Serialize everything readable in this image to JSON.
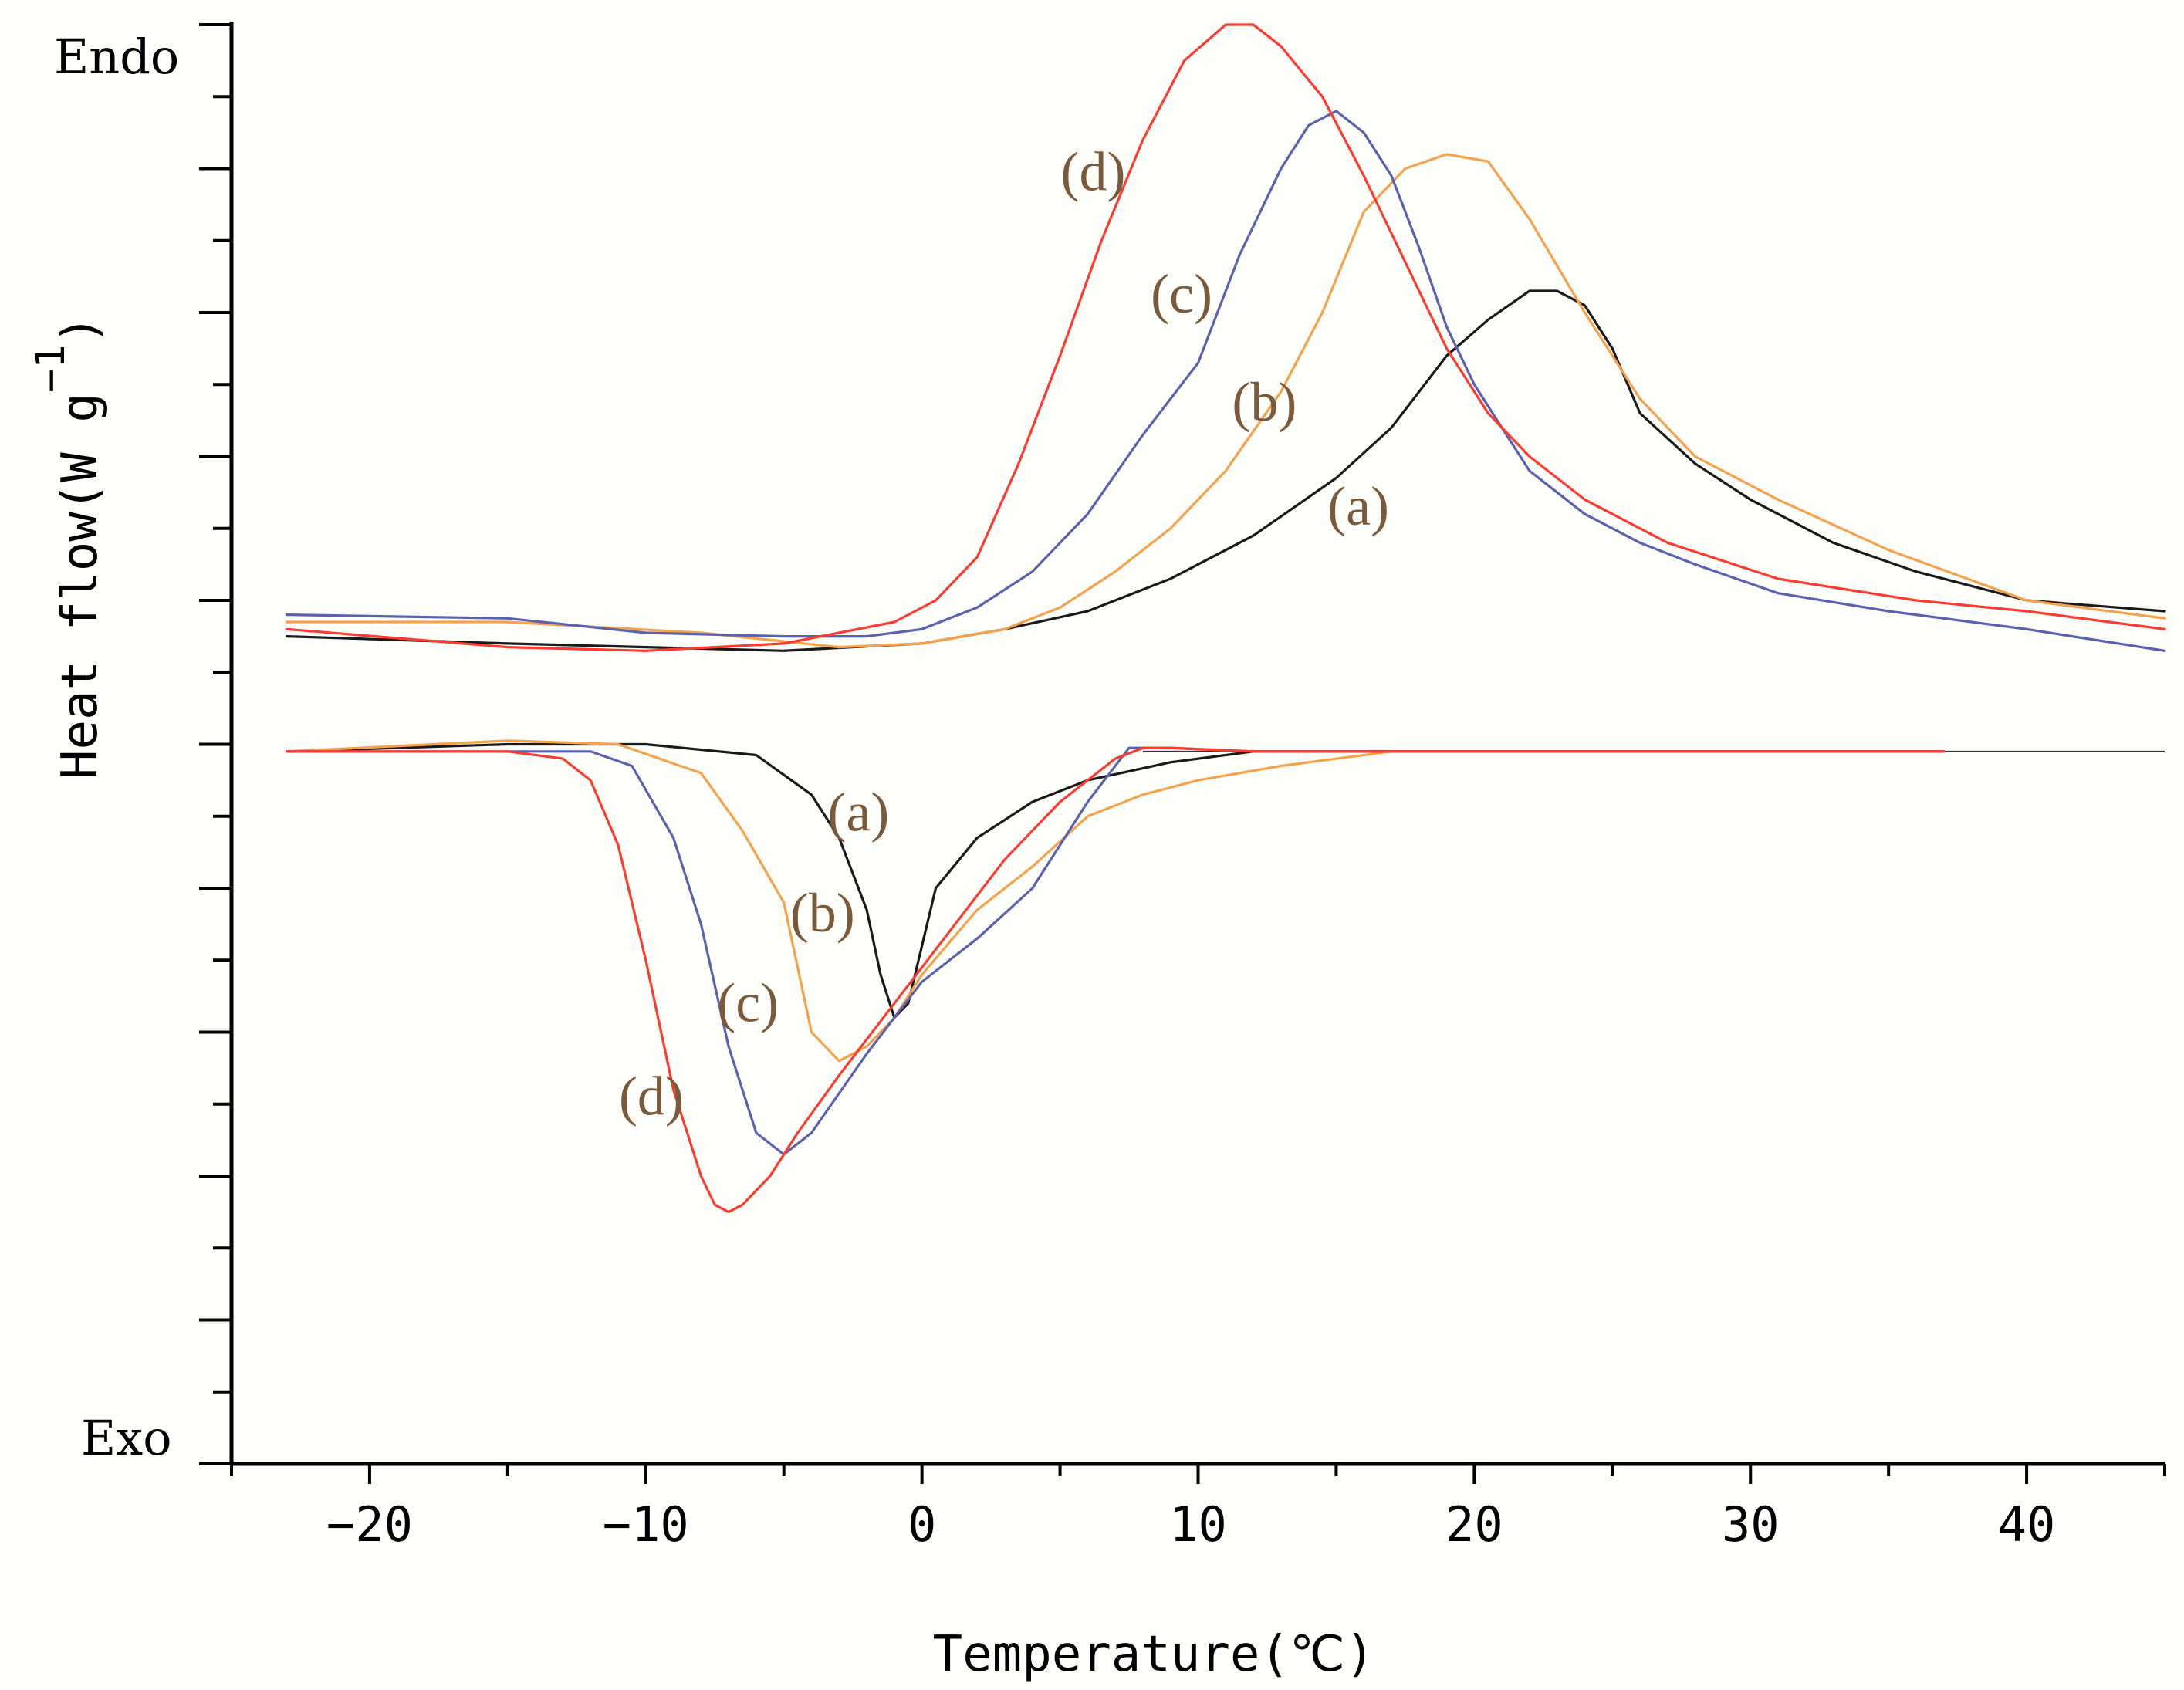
{
  "colors": {
    "a": "#1a1a1a",
    "b": "#f7a14a",
    "c": "#5961b0",
    "d": "#ff3b30",
    "label": "#7a5a3a",
    "axis": "#000000"
  },
  "chart_data": {
    "type": "line",
    "title": "",
    "xlabel": "Temperature(℃)",
    "ylabel": "Heat flow(W g",
    "ylabel_sup": "−1",
    "ylabel_close": ")",
    "y_top_label": "Endo",
    "y_bottom_label": "Exo",
    "xlim": [
      -25,
      45
    ],
    "ylim": [
      -10,
      10
    ],
    "xticks": [
      -20,
      -10,
      0,
      10,
      20,
      30,
      40
    ],
    "xtick_labels": [
      "−20",
      "−10",
      "0",
      "10",
      "20",
      "30",
      "40"
    ],
    "series": [
      {
        "name": "(a)",
        "key": "a",
        "group": "heating",
        "x": [
          -23,
          -15,
          -10,
          -5,
          0,
          3,
          6,
          9,
          12,
          15,
          17,
          19,
          20.5,
          22,
          23,
          24,
          25,
          26,
          28,
          30,
          33,
          36,
          40,
          45
        ],
        "y": [
          1.5,
          1.4,
          1.35,
          1.3,
          1.4,
          1.6,
          1.85,
          2.3,
          2.9,
          3.7,
          4.4,
          5.4,
          5.9,
          6.3,
          6.3,
          6.1,
          5.5,
          4.6,
          3.9,
          3.4,
          2.8,
          2.4,
          2.0,
          1.85
        ]
      },
      {
        "name": "(b)",
        "key": "b",
        "group": "heating",
        "x": [
          -23,
          -15,
          -8,
          -3,
          0,
          3,
          5,
          7,
          9,
          11,
          13,
          14.5,
          16,
          17.5,
          19,
          20.5,
          22,
          24,
          26,
          28,
          31,
          35,
          40,
          45
        ],
        "y": [
          1.7,
          1.7,
          1.55,
          1.35,
          1.4,
          1.6,
          1.9,
          2.4,
          3.0,
          3.8,
          4.9,
          6.0,
          7.4,
          8.0,
          8.2,
          8.1,
          7.3,
          6.0,
          4.8,
          4.0,
          3.4,
          2.7,
          2.0,
          1.75
        ]
      },
      {
        "name": "(c)",
        "key": "c",
        "group": "heating",
        "x": [
          -23,
          -15,
          -10,
          -5,
          -2,
          0,
          2,
          4,
          6,
          8,
          10,
          11.5,
          13,
          14,
          15,
          16,
          17,
          18,
          19,
          20,
          21,
          22,
          24,
          26,
          28,
          31,
          35,
          40,
          45
        ],
        "y": [
          1.8,
          1.75,
          1.55,
          1.5,
          1.5,
          1.6,
          1.9,
          2.4,
          3.2,
          4.3,
          5.3,
          6.8,
          8.0,
          8.6,
          8.8,
          8.5,
          7.9,
          6.9,
          5.8,
          5.0,
          4.4,
          3.8,
          3.2,
          2.8,
          2.5,
          2.1,
          1.85,
          1.6,
          1.3
        ]
      },
      {
        "name": "(d)",
        "key": "d",
        "group": "heating",
        "x": [
          -23,
          -15,
          -10,
          -5,
          -1,
          0.5,
          2,
          3.5,
          5,
          6.5,
          8,
          9.5,
          11,
          12,
          13,
          14.5,
          16,
          17.5,
          19,
          20.5,
          22,
          24,
          27,
          31,
          36,
          40,
          45
        ],
        "y": [
          1.6,
          1.35,
          1.3,
          1.4,
          1.7,
          2.0,
          2.6,
          3.9,
          5.4,
          7.0,
          8.4,
          9.5,
          10.0,
          10.0,
          9.7,
          9.0,
          7.9,
          6.7,
          5.5,
          4.6,
          4.0,
          3.4,
          2.8,
          2.3,
          2.0,
          1.85,
          1.6
        ]
      },
      {
        "name": "(a)",
        "key": "a",
        "group": "cooling",
        "x": [
          -23,
          -15,
          -10,
          -6,
          -4,
          -3,
          -2,
          -1.5,
          -1,
          -0.5,
          0.5,
          2,
          4,
          6,
          9,
          12,
          15,
          20,
          30,
          37
        ],
        "y": [
          -0.1,
          0.0,
          0.0,
          -0.15,
          -0.7,
          -1.3,
          -2.3,
          -3.2,
          -3.8,
          -3.6,
          -2.0,
          -1.3,
          -0.8,
          -0.5,
          -0.25,
          -0.1,
          -0.1,
          -0.1,
          -0.1,
          -0.1
        ]
      },
      {
        "name": "(b)",
        "key": "b",
        "group": "cooling",
        "x": [
          -23,
          -15,
          -11,
          -8,
          -6.5,
          -5,
          -4,
          -3,
          -2,
          -1,
          0,
          2,
          4,
          6,
          8,
          10,
          13,
          17,
          20,
          30,
          37
        ],
        "y": [
          -0.1,
          0.05,
          0.0,
          -0.4,
          -1.2,
          -2.2,
          -4.0,
          -4.4,
          -4.2,
          -3.8,
          -3.2,
          -2.3,
          -1.7,
          -1.0,
          -0.7,
          -0.5,
          -0.3,
          -0.1,
          -0.1,
          -0.1,
          -0.1
        ]
      },
      {
        "name": "(c)",
        "key": "c",
        "group": "cooling",
        "x": [
          -23,
          -15,
          -12,
          -10.5,
          -9,
          -8,
          -7,
          -6,
          -5,
          -4,
          -2,
          0,
          2,
          4,
          6,
          7.5,
          9,
          12,
          15,
          20,
          30,
          37
        ],
        "y": [
          -0.1,
          -0.1,
          -0.1,
          -0.3,
          -1.3,
          -2.5,
          -4.2,
          -5.4,
          -5.7,
          -5.4,
          -4.3,
          -3.3,
          -2.7,
          -2.0,
          -0.8,
          -0.05,
          -0.05,
          -0.1,
          -0.1,
          -0.1,
          -0.1,
          -0.1
        ]
      },
      {
        "name": "(d)",
        "key": "d",
        "group": "cooling",
        "x": [
          -23,
          -15,
          -13,
          -12,
          -11,
          -10,
          -9,
          -8,
          -7.5,
          -7,
          -6.5,
          -5.5,
          -4.5,
          -3,
          -1,
          1,
          3,
          5,
          7,
          8,
          9,
          12,
          15,
          20,
          30,
          37
        ],
        "y": [
          -0.1,
          -0.1,
          -0.2,
          -0.5,
          -1.4,
          -3.0,
          -4.8,
          -6.0,
          -6.4,
          -6.5,
          -6.4,
          -6.0,
          -5.4,
          -4.6,
          -3.6,
          -2.6,
          -1.6,
          -0.8,
          -0.2,
          -0.05,
          -0.05,
          -0.1,
          -0.1,
          -0.1,
          -0.1,
          -0.1
        ]
      }
    ],
    "annotations": [
      {
        "text": "(d)",
        "key": "d",
        "x": 6.2,
        "y": 7.7
      },
      {
        "text": "(c)",
        "key": "c",
        "x": 9.4,
        "y": 6.0
      },
      {
        "text": "(b)",
        "key": "b",
        "x": 12.4,
        "y": 4.5
      },
      {
        "text": "(a)",
        "key": "a",
        "x": 15.8,
        "y": 3.05
      },
      {
        "text": "(a)",
        "key": "a",
        "x": -2.3,
        "y": -1.2
      },
      {
        "text": "(b)",
        "key": "b",
        "x": -3.6,
        "y": -2.6
      },
      {
        "text": "(c)",
        "key": "c",
        "x": -6.3,
        "y": -3.85
      },
      {
        "text": "(d)",
        "key": "d",
        "x": -9.8,
        "y": -5.15
      }
    ]
  }
}
